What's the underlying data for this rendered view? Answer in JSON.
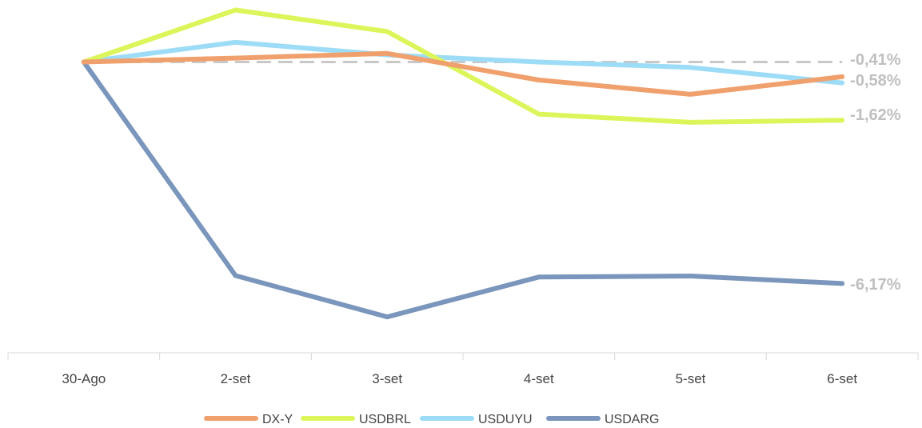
{
  "chart_data": {
    "type": "line",
    "categories": [
      "30-Ago",
      "2-set",
      "3-set",
      "4-set",
      "5-set",
      "6-set"
    ],
    "series": [
      {
        "name": "DX-Y",
        "color": "#f0a06c",
        "values": [
          0.0,
          0.11,
          0.24,
          -0.5,
          -0.9,
          -0.41
        ]
      },
      {
        "name": "USDBRL",
        "color": "#dcf55a",
        "values": [
          0.0,
          1.45,
          0.85,
          -1.45,
          -1.68,
          -1.62
        ]
      },
      {
        "name": "USDUYU",
        "color": "#9ddcf7",
        "values": [
          0.0,
          0.55,
          0.2,
          0.0,
          -0.15,
          -0.58
        ]
      },
      {
        "name": "USDARG",
        "color": "#7a96bc",
        "values": [
          0.0,
          -5.95,
          -7.1,
          -5.99,
          -5.96,
          -6.17
        ]
      }
    ],
    "end_labels": [
      "-0,41%",
      "-0,58%",
      "-1,62%",
      "-6,17%"
    ],
    "reference_line": {
      "value": 0.0,
      "style": "dashed",
      "color": "#c8c8c8"
    },
    "ylim": [
      -8.1,
      1.55
    ],
    "xlabel": "",
    "ylabel": "",
    "grid": false,
    "legend": "bottom-center"
  }
}
